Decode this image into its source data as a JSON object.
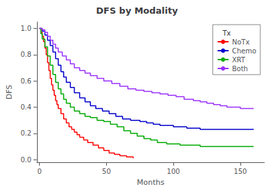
{
  "chart_data": {
    "type": "step",
    "title": "DFS by Modality",
    "xlabel": "Months",
    "ylabel": "DFS",
    "xlim": [
      -2,
      168
    ],
    "ylim": [
      -0.02,
      1.05
    ],
    "xticks": [
      0,
      50,
      100,
      150
    ],
    "yticks": [
      {
        "value": 0.0,
        "label": "0.0"
      },
      0.2,
      0.4,
      0.6,
      0.8,
      {
        "value": 1.0,
        "label": "1.0"
      }
    ],
    "grid": false,
    "legend": "upper right",
    "legend_title": "Tx",
    "series": [
      {
        "name": "NoTx",
        "color": "#FF0000",
        "x": [
          0,
          1,
          2,
          3,
          4,
          5,
          6,
          7,
          8,
          9,
          10,
          11,
          12,
          13,
          14,
          16,
          18,
          20,
          22,
          24,
          26,
          28,
          30,
          33,
          36,
          40,
          44,
          48,
          52,
          56,
          60,
          65,
          70
        ],
        "values": [
          1.0,
          0.97,
          0.94,
          0.9,
          0.85,
          0.8,
          0.74,
          0.68,
          0.62,
          0.57,
          0.53,
          0.49,
          0.45,
          0.42,
          0.39,
          0.35,
          0.31,
          0.28,
          0.25,
          0.23,
          0.21,
          0.19,
          0.17,
          0.15,
          0.13,
          0.11,
          0.09,
          0.07,
          0.05,
          0.04,
          0.03,
          0.02,
          0.01
        ]
      },
      {
        "name": "Chemo",
        "color": "#0000CC",
        "x": [
          0,
          2,
          4,
          6,
          8,
          10,
          12,
          14,
          16,
          18,
          20,
          23,
          26,
          30,
          34,
          38,
          42,
          47,
          52,
          57,
          62,
          68,
          75,
          80,
          85,
          90,
          100,
          110,
          120,
          130,
          140,
          150,
          160
        ],
        "values": [
          1.0,
          0.98,
          0.95,
          0.91,
          0.87,
          0.82,
          0.77,
          0.72,
          0.67,
          0.63,
          0.59,
          0.55,
          0.51,
          0.47,
          0.44,
          0.41,
          0.39,
          0.37,
          0.35,
          0.33,
          0.31,
          0.3,
          0.29,
          0.28,
          0.27,
          0.26,
          0.25,
          0.24,
          0.23,
          0.23,
          0.23,
          0.23,
          0.23
        ]
      },
      {
        "name": "XRT",
        "color": "#00AA00",
        "x": [
          0,
          1,
          2,
          4,
          6,
          8,
          10,
          12,
          14,
          16,
          18,
          20,
          23,
          26,
          30,
          34,
          38,
          43,
          48,
          53,
          58,
          63,
          68,
          73,
          78,
          83,
          88,
          95,
          105,
          120,
          140,
          160
        ],
        "values": [
          1.0,
          0.96,
          0.92,
          0.86,
          0.79,
          0.72,
          0.65,
          0.59,
          0.54,
          0.5,
          0.46,
          0.43,
          0.4,
          0.37,
          0.35,
          0.33,
          0.32,
          0.3,
          0.29,
          0.27,
          0.25,
          0.22,
          0.2,
          0.18,
          0.16,
          0.15,
          0.13,
          0.12,
          0.11,
          0.1,
          0.1,
          0.1
        ]
      },
      {
        "name": "Both",
        "color": "#9B30FF",
        "x": [
          0,
          2,
          4,
          6,
          8,
          10,
          12,
          14,
          17,
          20,
          23,
          26,
          30,
          34,
          38,
          43,
          48,
          54,
          60,
          66,
          72,
          78,
          84,
          90,
          96,
          102,
          108,
          115,
          120,
          125,
          130,
          135,
          140,
          150,
          160
        ],
        "values": [
          1.0,
          0.99,
          0.97,
          0.94,
          0.91,
          0.88,
          0.85,
          0.82,
          0.79,
          0.76,
          0.73,
          0.7,
          0.68,
          0.66,
          0.64,
          0.62,
          0.6,
          0.58,
          0.56,
          0.54,
          0.53,
          0.52,
          0.51,
          0.5,
          0.49,
          0.48,
          0.46,
          0.45,
          0.44,
          0.43,
          0.42,
          0.41,
          0.4,
          0.39,
          0.39
        ]
      }
    ]
  }
}
